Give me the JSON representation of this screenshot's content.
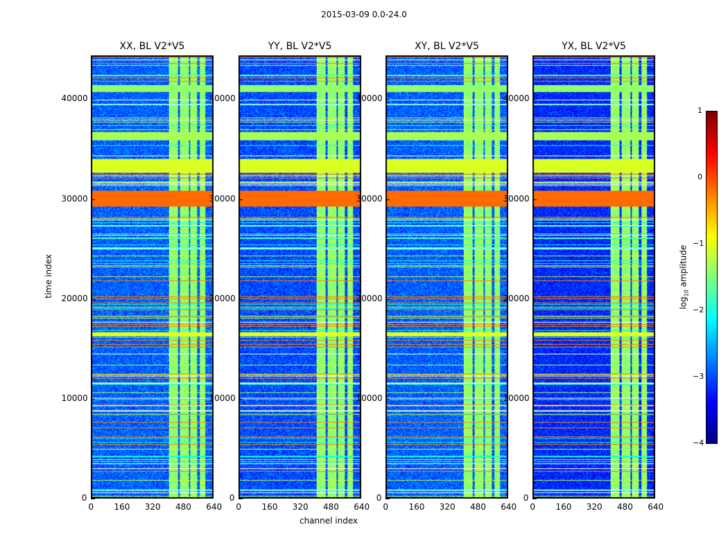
{
  "chart_data": {
    "type": "heatmap",
    "title": "2015-03-09 0.0-24.0",
    "xlabel": "channel index",
    "ylabel": "time index",
    "xlim": [
      0,
      640
    ],
    "ylim": [
      0,
      44400
    ],
    "xticks": [
      "0",
      "160",
      "320",
      "480",
      "640"
    ],
    "yticks": [
      "0",
      "10000",
      "20000",
      "30000",
      "40000"
    ],
    "panels": [
      {
        "title": "XX, BL V2*V5",
        "background_level": -2.9
      },
      {
        "title": "YY, BL V2*V5",
        "background_level": -3.0
      },
      {
        "title": "XY, BL V2*V5",
        "background_level": -2.9
      },
      {
        "title": "YX, BL V2*V5",
        "background_level": -3.2
      }
    ],
    "bright_channel_ranges": [
      [
        405,
        455
      ],
      [
        465,
        510
      ],
      [
        518,
        555
      ],
      [
        570,
        600
      ]
    ],
    "bright_channel_level": -1.4,
    "time_bands": [
      {
        "range": [
          29300,
          30900
        ],
        "level": -0.15
      },
      {
        "range": [
          32700,
          34100
        ],
        "level": -1.05
      },
      {
        "range": [
          36000,
          36800
        ],
        "level": -1.3
      },
      {
        "range": [
          16300,
          16700
        ],
        "level": -1.0
      },
      {
        "range": [
          40800,
          41500
        ],
        "level": -1.4
      }
    ],
    "colorbar": {
      "label": "log",
      "label_sub": "10",
      "label_rest": " amplitude",
      "range": [
        -4,
        1
      ],
      "ticks": [
        "1",
        "0",
        "−1",
        "−2",
        "−3",
        "−4"
      ],
      "colormap": "jet"
    }
  }
}
